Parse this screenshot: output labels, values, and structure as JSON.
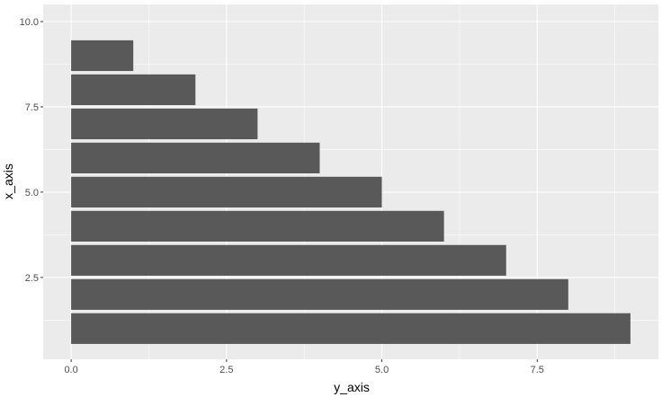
{
  "chart_data": {
    "type": "bar",
    "orientation": "horizontal",
    "xlabel": "y_axis",
    "ylabel": "x_axis",
    "categories": [
      1,
      2,
      3,
      4,
      5,
      6,
      7,
      8,
      9
    ],
    "values": [
      9,
      8,
      7,
      6,
      5,
      4,
      3,
      2,
      1
    ],
    "xlim": [
      -0.45,
      9.45
    ],
    "ylim": [
      0.1,
      10.5
    ],
    "x_ticks": [
      0.0,
      2.5,
      5.0,
      7.5
    ],
    "x_tick_labels": [
      "0.0",
      "2.5",
      "5.0",
      "7.5"
    ],
    "y_ticks": [
      2.5,
      5.0,
      7.5,
      10.0
    ],
    "y_tick_labels": [
      "2.5",
      "5.0",
      "7.5",
      "10.0"
    ],
    "grid": true,
    "colors": {
      "panel_background": "#ebebeb",
      "grid_major": "#ffffff",
      "bar_fill": "#595959",
      "tick_text": "#4d4d4d",
      "tick_mark": "#333333"
    }
  }
}
